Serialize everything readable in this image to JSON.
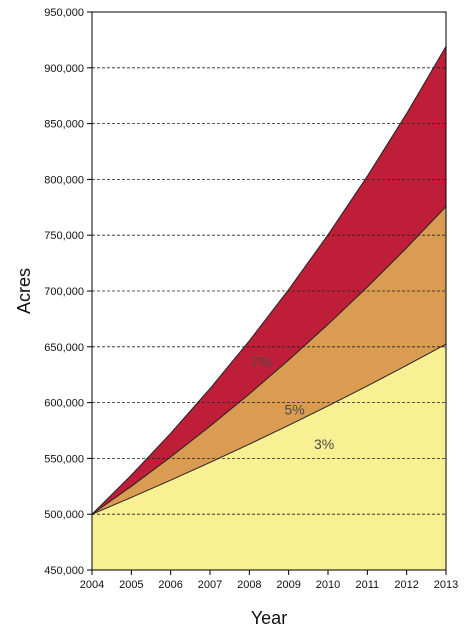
{
  "chart_data": {
    "type": "area",
    "title": "",
    "xlabel": "Year",
    "ylabel": "Acres",
    "x": [
      2004,
      2005,
      2006,
      2007,
      2008,
      2009,
      2010,
      2011,
      2012,
      2013
    ],
    "x_tick_labels": [
      "2004",
      "2005",
      "2006",
      "2007",
      "2008",
      "2009",
      "2010",
      "2011",
      "2012",
      "2013"
    ],
    "y_tick_labels": [
      "450,000",
      "500,000",
      "550,000",
      "600,000",
      "650,000",
      "700,000",
      "750,000",
      "800,000",
      "850,000",
      "900,000",
      "950,000"
    ],
    "ylim": [
      450000,
      950000
    ],
    "xlim": [
      2004,
      2013
    ],
    "grid": "horizontal dashed",
    "series": [
      {
        "name": "7%",
        "color": "#be1e37",
        "values": [
          500000,
          535000,
          572450,
          612522,
          655398,
          701276,
          750365,
          802891,
          859093,
          919230
        ]
      },
      {
        "name": "5%",
        "color": "#d99c52",
        "values": [
          500000,
          525000,
          551250,
          578813,
          607753,
          638141,
          670048,
          703550,
          738728,
          775664
        ]
      },
      {
        "name": "3%",
        "color": "#f9ef93",
        "values": [
          500000,
          515000,
          530450,
          546364,
          562754,
          579637,
          597026,
          614937,
          633385,
          652387
        ]
      }
    ],
    "annotations": [
      {
        "text": "7%",
        "x": 2008.3,
        "y": 637000
      },
      {
        "text": "5%",
        "x": 2009.15,
        "y": 594000
      },
      {
        "text": "3%",
        "x": 2009.9,
        "y": 563000
      }
    ]
  }
}
